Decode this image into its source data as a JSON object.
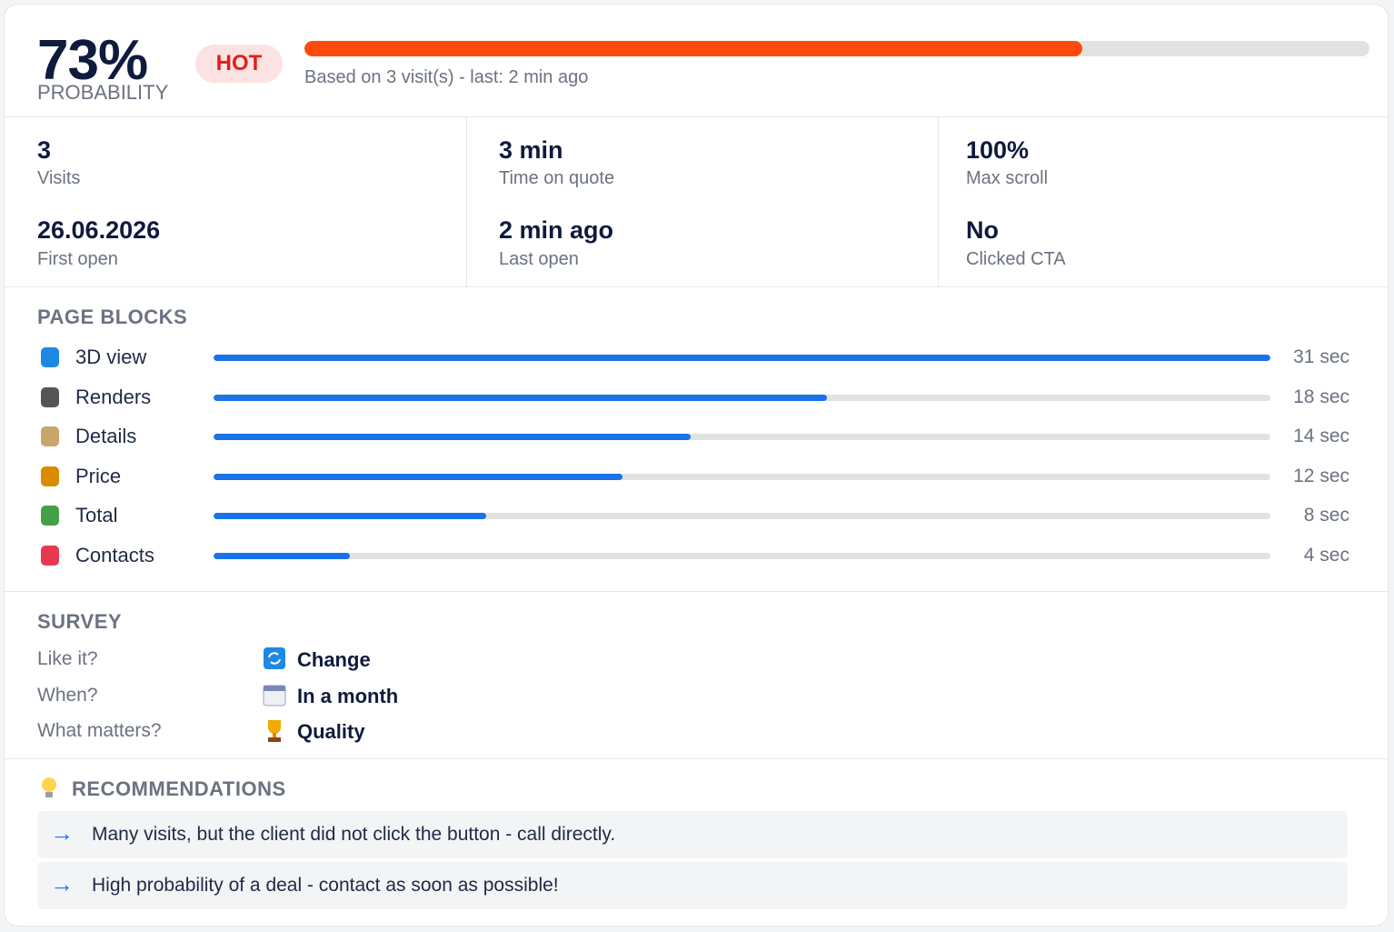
{
  "header": {
    "probability": {
      "value": 73,
      "label": "73%"
    },
    "probability_label": "PROBABILITY",
    "status": "HOT",
    "note": "Based on 3 visit(s) - last: 2 min ago"
  },
  "stats": [
    [
      {
        "value": "3",
        "label": "Visits"
      },
      {
        "value": "26.06.2026",
        "label": "First open"
      }
    ],
    [
      {
        "value": "3 min",
        "label": "Time on quote"
      },
      {
        "value": "2 min ago",
        "label": "Last open"
      }
    ],
    [
      {
        "value": "100%",
        "label": "Max scroll"
      },
      {
        "value": "No",
        "label": "Clicked CTA"
      }
    ]
  ],
  "page_blocks": {
    "title": "PAGE BLOCKS",
    "blocks": [
      {
        "name": "3D view",
        "seconds": 31,
        "label": "31 sec"
      },
      {
        "name": "Renders",
        "seconds": 18,
        "label": "18 sec"
      },
      {
        "name": "Details",
        "seconds": 14,
        "label": "14 sec"
      },
      {
        "name": "Price",
        "seconds": 12,
        "label": "12 sec"
      },
      {
        "name": "Total",
        "seconds": 8,
        "label": "8 sec"
      },
      {
        "name": "Contacts",
        "seconds": 4,
        "label": "4 sec"
      }
    ]
  },
  "survey": {
    "title": "SURVEY",
    "items": [
      {
        "question": "Like it?",
        "answer": "Change"
      },
      {
        "question": "When?",
        "answer": "In a month"
      },
      {
        "question": "What matters?",
        "answer": "Quality"
      }
    ]
  },
  "recommendations": {
    "title": "RECOMMENDATIONS",
    "items": [
      "Many visits, but the client did not click the button - call directly.",
      "High probability of a deal - contact as soon as possible!"
    ]
  }
}
